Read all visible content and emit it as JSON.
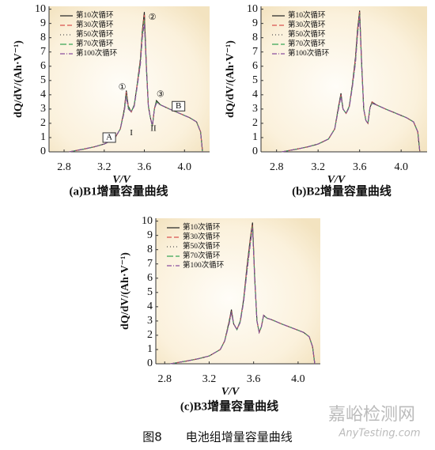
{
  "chart_data": [
    {
      "type": "line",
      "caption": "(a)B1增量容量曲线",
      "x_label": "V/V",
      "y_label": "dQ/dV/(Ah·V⁻¹)",
      "xlim": [
        2.65,
        4.25
      ],
      "ylim": [
        0,
        10.2
      ],
      "xticks": [
        2.8,
        3.2,
        3.6,
        {
          "value": 4.0,
          "label": "4.0"
        }
      ],
      "yticks": [
        0,
        1,
        2,
        3,
        4,
        5,
        6,
        7,
        8,
        9,
        10
      ],
      "x": [
        2.85,
        3.0,
        3.1,
        3.2,
        3.3,
        3.36,
        3.4,
        3.42,
        3.44,
        3.47,
        3.5,
        3.53,
        3.56,
        3.58,
        3.6,
        3.62,
        3.64,
        3.66,
        3.68,
        3.7,
        3.72,
        3.76,
        3.85,
        3.95,
        4.05,
        4.12,
        4.16,
        4.18
      ],
      "series": [
        {
          "name": "第10次循环",
          "color": "#222222",
          "dash": "none",
          "values": [
            0,
            0.2,
            0.35,
            0.55,
            0.9,
            1.6,
            3.0,
            4.3,
            3.2,
            2.8,
            3.3,
            4.8,
            6.5,
            8.5,
            9.8,
            6.0,
            3.2,
            2.4,
            1.8,
            3.0,
            3.6,
            3.3,
            3.0,
            2.7,
            2.4,
            2.1,
            1.4,
            0
          ]
        },
        {
          "name": "第30次循环",
          "color": "#d9534f",
          "dash": "6 3",
          "values": [
            0,
            0.2,
            0.35,
            0.55,
            0.9,
            1.6,
            3.0,
            4.2,
            3.2,
            2.8,
            3.3,
            4.8,
            6.4,
            8.4,
            9.6,
            6.0,
            3.2,
            2.4,
            1.8,
            3.0,
            3.5,
            3.3,
            3.0,
            2.7,
            2.4,
            2.1,
            1.4,
            0
          ]
        },
        {
          "name": "第50次循环",
          "color": "#555555",
          "dash": "1 3",
          "values": [
            0,
            0.2,
            0.35,
            0.55,
            0.9,
            1.6,
            2.9,
            4.1,
            3.1,
            2.8,
            3.3,
            4.7,
            6.3,
            8.3,
            9.4,
            5.9,
            3.2,
            2.4,
            1.8,
            3.0,
            3.5,
            3.3,
            3.0,
            2.7,
            2.4,
            2.1,
            1.4,
            0
          ]
        },
        {
          "name": "第70次循环",
          "color": "#3aa655",
          "dash": "8 3",
          "values": [
            0,
            0.2,
            0.35,
            0.55,
            0.9,
            1.6,
            2.9,
            4.0,
            3.1,
            2.8,
            3.3,
            4.7,
            6.2,
            8.2,
            9.2,
            5.9,
            3.2,
            2.4,
            1.8,
            3.0,
            3.5,
            3.3,
            3.0,
            2.7,
            2.4,
            2.1,
            1.4,
            0
          ]
        },
        {
          "name": "第100次循环",
          "color": "#8a4f9e",
          "dash": "6 2 1 2",
          "values": [
            0,
            0.2,
            0.35,
            0.55,
            0.9,
            1.6,
            2.8,
            3.9,
            3.0,
            2.8,
            3.2,
            4.6,
            6.1,
            8.0,
            9.0,
            5.8,
            3.2,
            2.4,
            1.8,
            3.0,
            3.4,
            3.3,
            3.0,
            2.7,
            2.4,
            2.1,
            1.4,
            0
          ]
        }
      ],
      "annotations": [
        {
          "text": "①",
          "x": 3.38,
          "y": 4.5
        },
        {
          "text": "②",
          "x": 3.68,
          "y": 9.4
        },
        {
          "text": "③",
          "x": 3.76,
          "y": 4.0
        },
        {
          "text": "I",
          "x": 3.47,
          "y": 1.3
        },
        {
          "text": "II",
          "x": 3.69,
          "y": 1.6
        },
        {
          "text": "A",
          "x": 3.25,
          "y": 1.0
        },
        {
          "text": "B",
          "x": 3.94,
          "y": 3.2
        }
      ]
    },
    {
      "type": "line",
      "caption": "(b)B2增量容量曲线",
      "x_label": "V/V",
      "y_label": "dQ/dV/(Ah·V⁻¹)",
      "xlim": [
        2.65,
        4.25
      ],
      "ylim": [
        0,
        10.2
      ],
      "xticks": [
        2.8,
        3.2,
        3.6,
        {
          "value": 4.0,
          "label": "4.0"
        }
      ],
      "yticks": [
        0,
        1,
        2,
        3,
        4,
        5,
        6,
        7,
        8,
        9,
        10
      ],
      "x": [
        2.85,
        3.0,
        3.1,
        3.2,
        3.3,
        3.36,
        3.4,
        3.42,
        3.44,
        3.47,
        3.5,
        3.53,
        3.56,
        3.58,
        3.6,
        3.62,
        3.64,
        3.66,
        3.68,
        3.7,
        3.72,
        3.76,
        3.85,
        3.95,
        4.05,
        4.12,
        4.16,
        4.18
      ],
      "series": [
        {
          "name": "第10次循环",
          "color": "#222222",
          "dash": "none",
          "values": [
            0,
            0.2,
            0.35,
            0.55,
            0.9,
            1.6,
            3.3,
            4.1,
            3.0,
            2.7,
            3.2,
            4.7,
            6.6,
            8.6,
            9.9,
            6.2,
            3.0,
            2.2,
            2.0,
            3.1,
            3.5,
            3.3,
            3.0,
            2.7,
            2.4,
            2.1,
            1.4,
            0
          ]
        },
        {
          "name": "第30次循环",
          "color": "#d9534f",
          "dash": "6 3",
          "values": [
            0,
            0.2,
            0.35,
            0.55,
            0.9,
            1.6,
            3.3,
            4.0,
            3.0,
            2.7,
            3.2,
            4.7,
            6.5,
            8.5,
            9.8,
            6.1,
            3.0,
            2.2,
            2.0,
            3.1,
            3.5,
            3.3,
            3.0,
            2.7,
            2.4,
            2.1,
            1.4,
            0
          ]
        },
        {
          "name": "第50次循环",
          "color": "#555555",
          "dash": "1 3",
          "values": [
            0,
            0.2,
            0.35,
            0.55,
            0.9,
            1.6,
            3.2,
            4.0,
            3.0,
            2.7,
            3.2,
            4.6,
            6.4,
            8.4,
            9.7,
            6.1,
            3.0,
            2.2,
            2.0,
            3.1,
            3.5,
            3.3,
            3.0,
            2.7,
            2.4,
            2.1,
            1.4,
            0
          ]
        },
        {
          "name": "第70次循环",
          "color": "#3aa655",
          "dash": "8 3",
          "values": [
            0,
            0.2,
            0.35,
            0.55,
            0.9,
            1.6,
            3.2,
            3.9,
            3.0,
            2.7,
            3.2,
            4.6,
            6.3,
            8.3,
            9.6,
            6.0,
            3.0,
            2.2,
            2.0,
            3.1,
            3.4,
            3.3,
            3.0,
            2.7,
            2.4,
            2.1,
            1.4,
            0
          ]
        },
        {
          "name": "第100次循环",
          "color": "#8a4f9e",
          "dash": "6 2 1 2",
          "values": [
            0,
            0.2,
            0.35,
            0.55,
            0.9,
            1.6,
            3.1,
            3.9,
            3.0,
            2.7,
            3.1,
            4.5,
            6.2,
            8.2,
            9.5,
            6.0,
            3.0,
            2.2,
            2.0,
            3.1,
            3.4,
            3.3,
            3.0,
            2.7,
            2.4,
            2.1,
            1.4,
            0
          ]
        }
      ]
    },
    {
      "type": "line",
      "caption": "(c)B3增量容量曲线",
      "x_label": "V/V",
      "y_label": "dQ/dV/(Ah·V⁻¹)",
      "xlim": [
        2.72,
        4.2
      ],
      "ylim": [
        0,
        10.2
      ],
      "xticks": [
        2.8,
        3.2,
        3.6,
        {
          "value": 4.0,
          "label": "4.0"
        }
      ],
      "yticks": [
        0,
        1,
        2,
        3,
        4,
        5,
        6,
        7,
        8,
        9,
        10
      ],
      "x": [
        2.85,
        3.0,
        3.1,
        3.2,
        3.3,
        3.34,
        3.38,
        3.4,
        3.42,
        3.45,
        3.48,
        3.51,
        3.54,
        3.57,
        3.59,
        3.61,
        3.63,
        3.65,
        3.67,
        3.69,
        3.72,
        3.76,
        3.85,
        3.95,
        4.05,
        4.1,
        4.13,
        4.15
      ],
      "series": [
        {
          "name": "第10次循环",
          "color": "#222222",
          "dash": "none",
          "values": [
            0,
            0.2,
            0.35,
            0.55,
            1.0,
            1.6,
            3.0,
            3.8,
            2.8,
            2.4,
            3.0,
            4.5,
            6.8,
            8.8,
            9.9,
            6.0,
            3.0,
            2.2,
            2.6,
            3.4,
            3.2,
            3.1,
            2.8,
            2.5,
            2.2,
            1.9,
            1.2,
            0
          ]
        },
        {
          "name": "第30次循环",
          "color": "#d9534f",
          "dash": "6 3",
          "values": [
            0,
            0.2,
            0.35,
            0.55,
            1.0,
            1.6,
            3.0,
            3.7,
            2.8,
            2.4,
            3.0,
            4.5,
            6.7,
            8.7,
            9.8,
            6.0,
            3.0,
            2.2,
            2.6,
            3.4,
            3.2,
            3.1,
            2.8,
            2.5,
            2.2,
            1.9,
            1.2,
            0
          ]
        },
        {
          "name": "第50次循环",
          "color": "#555555",
          "dash": "1 3",
          "values": [
            0,
            0.2,
            0.35,
            0.55,
            1.0,
            1.6,
            2.9,
            3.7,
            2.8,
            2.4,
            3.0,
            4.4,
            6.6,
            8.6,
            9.7,
            5.9,
            3.0,
            2.2,
            2.6,
            3.4,
            3.2,
            3.1,
            2.8,
            2.5,
            2.2,
            1.9,
            1.2,
            0
          ]
        },
        {
          "name": "第70次循环",
          "color": "#3aa655",
          "dash": "8 3",
          "values": [
            0,
            0.2,
            0.35,
            0.55,
            1.0,
            1.6,
            2.9,
            3.6,
            2.8,
            2.4,
            3.0,
            4.4,
            6.5,
            8.5,
            9.6,
            5.9,
            3.0,
            2.2,
            2.6,
            3.4,
            3.2,
            3.1,
            2.8,
            2.5,
            2.2,
            1.9,
            1.2,
            0
          ]
        },
        {
          "name": "第100次循环",
          "color": "#8a4f9e",
          "dash": "6 2 1 2",
          "values": [
            0,
            0.2,
            0.35,
            0.55,
            1.0,
            1.6,
            2.8,
            3.6,
            2.8,
            2.4,
            2.9,
            4.3,
            6.4,
            8.4,
            9.5,
            5.8,
            3.0,
            2.2,
            2.6,
            3.4,
            3.2,
            3.1,
            2.8,
            2.5,
            2.2,
            1.9,
            1.2,
            0
          ]
        }
      ]
    }
  ],
  "figure_caption": "图8　　电池组增量容量曲线",
  "watermark": "嘉峪检测网",
  "watermark_sub": "AnyTesting.com"
}
